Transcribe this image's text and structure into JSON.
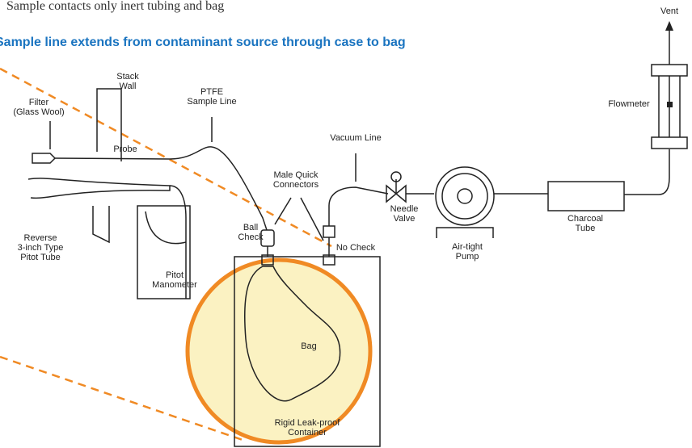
{
  "header": {
    "note": "Sample contacts only inert tubing and bag",
    "title": "Sample line extends from contaminant source through case to bag"
  },
  "labels": {
    "vent": [
      "Vent"
    ],
    "stack_wall": [
      "Stack",
      "Wall"
    ],
    "ptfe_line": [
      "PTFE",
      "Sample Line"
    ],
    "filter": [
      "Filter",
      "(Glass Wool)"
    ],
    "flowmeter": [
      "Flowmeter"
    ],
    "probe": [
      "Probe"
    ],
    "vacuum_line": [
      "Vacuum Line"
    ],
    "connectors": [
      "Male Quick",
      "Connectors"
    ],
    "needle_valve": [
      "Needle",
      "Valve"
    ],
    "charcoal_tube": [
      "Charcoal",
      "Tube"
    ],
    "ball_check": [
      "Ball",
      "Check"
    ],
    "no_check": [
      "No Check"
    ],
    "pump": [
      "Air-tight",
      "Pump"
    ],
    "pitot_tube": [
      "Reverse",
      "3-inch Type",
      "Pitot Tube"
    ],
    "manometer": [
      "Pitot",
      "Manometer"
    ],
    "bag": [
      "Bag"
    ],
    "container": [
      "Rigid Leak-proof",
      "Container"
    ]
  }
}
